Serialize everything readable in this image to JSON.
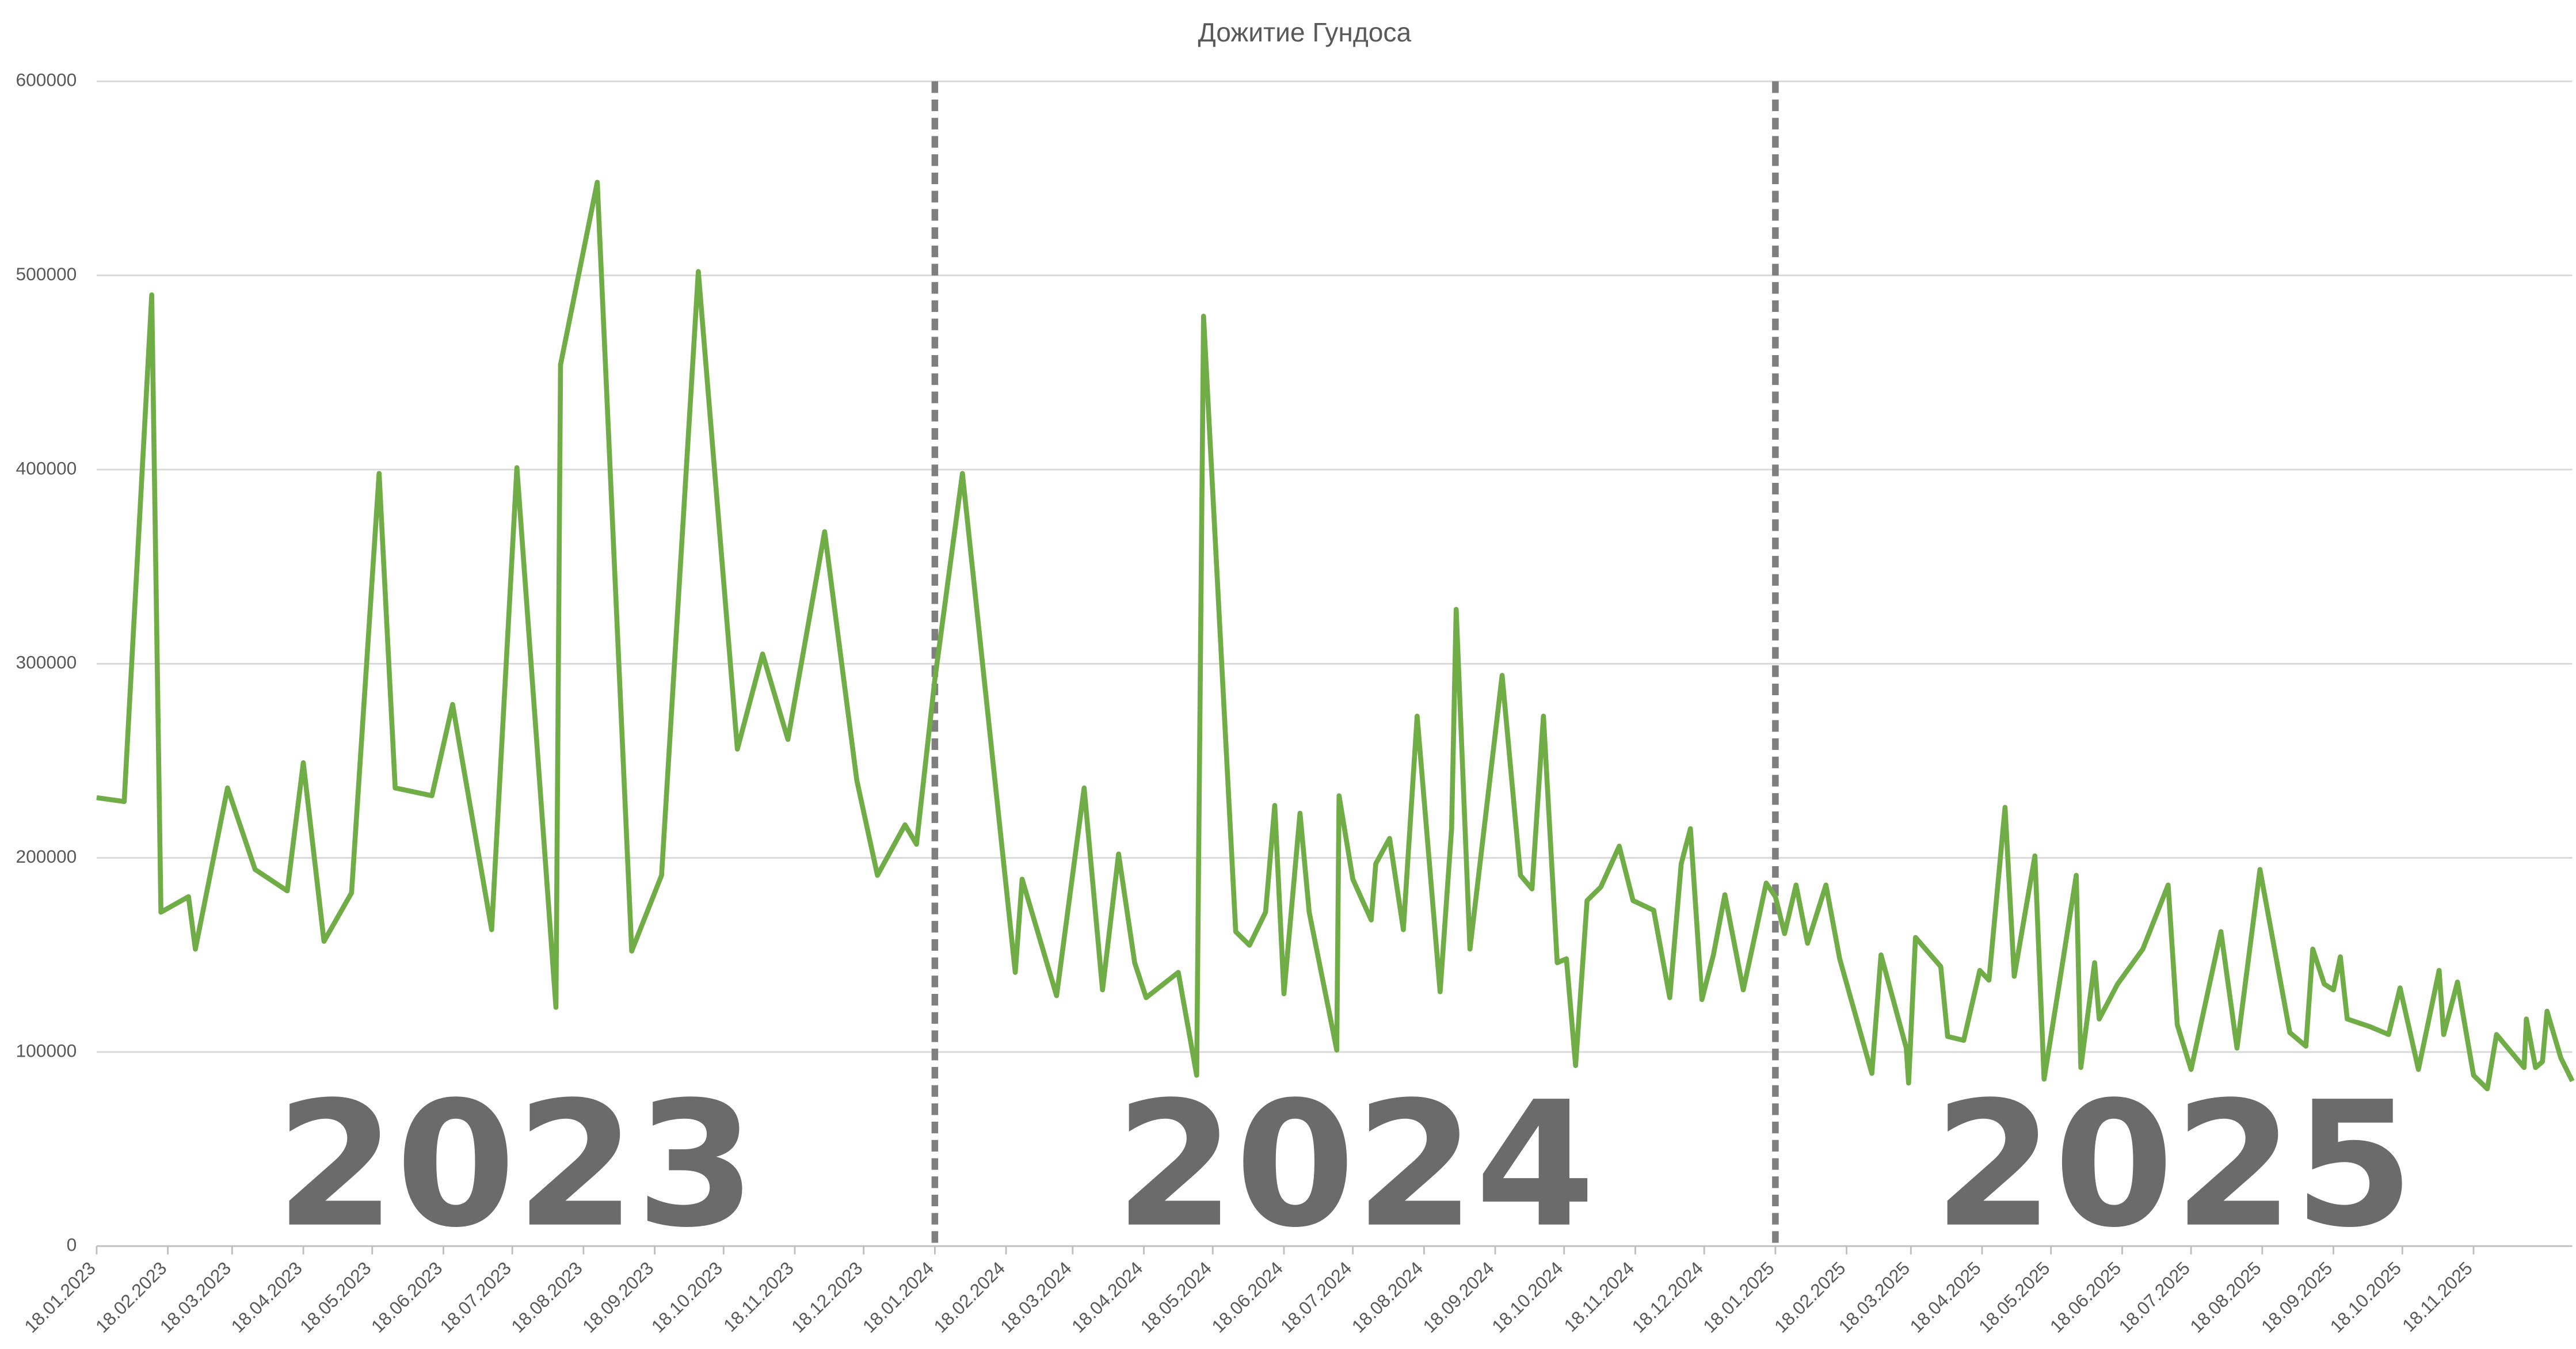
{
  "chart_data": {
    "type": "line",
    "title": "Дожитие Гундоса",
    "color": "#70ad47",
    "grid": true,
    "ylim": [
      0,
      600000
    ],
    "yticks": [
      0,
      100000,
      200000,
      300000,
      400000,
      500000,
      600000
    ],
    "xlim": [
      "18.01.2023",
      "31.12.2025"
    ],
    "xticks": [
      "18.01.2023",
      "18.02.2023",
      "18.03.2023",
      "18.04.2023",
      "18.05.2023",
      "18.06.2023",
      "18.07.2023",
      "18.08.2023",
      "18.09.2023",
      "18.10.2023",
      "18.11.2023",
      "18.12.2023",
      "18.01.2024",
      "18.02.2024",
      "18.03.2024",
      "18.04.2024",
      "18.05.2024",
      "18.06.2024",
      "18.07.2024",
      "18.08.2024",
      "18.09.2024",
      "18.10.2024",
      "18.11.2024",
      "18.12.2024",
      "18.01.2025",
      "18.02.2025",
      "18.03.2025",
      "18.04.2025",
      "18.05.2025",
      "18.06.2025",
      "18.07.2025",
      "18.08.2025",
      "18.09.2025",
      "18.10.2025",
      "18.11.2025"
    ],
    "vlines": [
      "18.01.2024",
      "18.01.2025"
    ],
    "annotations": [
      "2023",
      "2024",
      "2025"
    ],
    "x": [
      "18.01.2023",
      "30.01.2023",
      "11.02.2023",
      "15.02.2023",
      "27.02.2023",
      "02.03.2023",
      "16.03.2023",
      "28.03.2023",
      "11.04.2023",
      "18.04.2023",
      "27.04.2023",
      "09.05.2023",
      "21.05.2023",
      "28.05.2023",
      "13.06.2023",
      "22.06.2023",
      "09.07.2023",
      "20.07.2023",
      "06.08.2023",
      "08.08.2023",
      "24.08.2023",
      "08.09.2023",
      "21.09.2023",
      "07.10.2023",
      "24.10.2023",
      "04.11.2023",
      "15.11.2023",
      "01.12.2023",
      "15.12.2023",
      "24.12.2023",
      "05.01.2024",
      "10.01.2024",
      "18.01.2024",
      "30.01.2024",
      "22.02.2024",
      "25.02.2024",
      "11.03.2024",
      "23.03.2024",
      "31.03.2024",
      "07.04.2024",
      "14.04.2024",
      "19.04.2024",
      "03.05.2024",
      "11.05.2024",
      "14.05.2024",
      "28.05.2024",
      "03.06.2024",
      "10.06.2024",
      "14.06.2024",
      "18.06.2024",
      "25.06.2024",
      "29.06.2024",
      "11.07.2024",
      "12.07.2024",
      "18.07.2024",
      "26.07.2024",
      "28.07.2024",
      "03.08.2024",
      "09.08.2024",
      "15.08.2024",
      "25.08.2024",
      "30.08.2024",
      "01.09.2024",
      "07.09.2024",
      "21.09.2024",
      "29.09.2024",
      "04.10.2024",
      "09.10.2024",
      "15.10.2024",
      "19.10.2024",
      "23.10.2024",
      "28.10.2024",
      "03.11.2024",
      "11.11.2024",
      "17.11.2024",
      "26.11.2024",
      "03.12.2024",
      "08.12.2024",
      "12.12.2024",
      "17.12.2024",
      "22.12.2024",
      "27.12.2024",
      "04.01.2025",
      "14.01.2025",
      "18.01.2025",
      "22.01.2025",
      "27.01.2025",
      "01.02.2025",
      "09.02.2025",
      "15.02.2025",
      "01.03.2025",
      "05.03.2025",
      "16.03.2025",
      "17.03.2025",
      "20.03.2025",
      "31.03.2025",
      "03.04.2025",
      "10.04.2025",
      "17.04.2025",
      "21.04.2025",
      "28.04.2025",
      "02.05.2025",
      "11.05.2025",
      "15.05.2025",
      "22.05.2025",
      "29.05.2025",
      "31.05.2025",
      "06.06.2025",
      "08.06.2025",
      "16.06.2025",
      "27.06.2025",
      "08.07.2025",
      "12.07.2025",
      "18.07.2025",
      "31.07.2025",
      "07.08.2025",
      "17.08.2025",
      "30.08.2025",
      "06.09.2025",
      "09.09.2025",
      "14.09.2025",
      "18.09.2025",
      "21.09.2025",
      "24.09.2025",
      "04.10.2025",
      "12.10.2025",
      "17.10.2025",
      "25.10.2025",
      "03.11.2025",
      "05.11.2025",
      "11.11.2025",
      "18.11.2025",
      "24.11.2025",
      "28.11.2025",
      "10.12.2025",
      "11.12.2025",
      "15.12.2025",
      "18.12.2025",
      "20.12.2025",
      "26.12.2025",
      "31.12.2025"
    ],
    "values": [
      231000,
      229000,
      490000,
      172000,
      180000,
      153000,
      236000,
      194000,
      183000,
      249000,
      157000,
      182000,
      398000,
      236000,
      232000,
      279000,
      163000,
      401000,
      123000,
      454000,
      548000,
      152000,
      191000,
      502000,
      256000,
      305000,
      261000,
      368000,
      240000,
      191000,
      217000,
      207000,
      292000,
      398000,
      141000,
      189000,
      129000,
      236000,
      132000,
      202000,
      146000,
      128000,
      141000,
      88000,
      479000,
      162000,
      155000,
      172000,
      227000,
      130000,
      223000,
      172000,
      101000,
      232000,
      189000,
      168000,
      197000,
      210000,
      163000,
      273000,
      131000,
      215000,
      328000,
      153000,
      294000,
      191000,
      184000,
      273000,
      146000,
      148000,
      93000,
      178000,
      185000,
      206000,
      178000,
      173000,
      128000,
      197000,
      215000,
      127000,
      150000,
      181000,
      132000,
      187000,
      180000,
      161000,
      186000,
      156000,
      186000,
      148000,
      89000,
      150000,
      102000,
      84000,
      159000,
      144000,
      108000,
      106000,
      142000,
      137000,
      226000,
      139000,
      201000,
      86000,
      138000,
      191000,
      92000,
      146000,
      117000,
      135000,
      153000,
      186000,
      114000,
      91000,
      162000,
      102000,
      194000,
      110000,
      103000,
      153000,
      135000,
      132000,
      149000,
      117000,
      113000,
      109000,
      133000,
      91000,
      142000,
      109000,
      136000,
      88000,
      81000,
      109000,
      92000,
      117000,
      92000,
      95000,
      121000,
      97000,
      85000
    ]
  }
}
